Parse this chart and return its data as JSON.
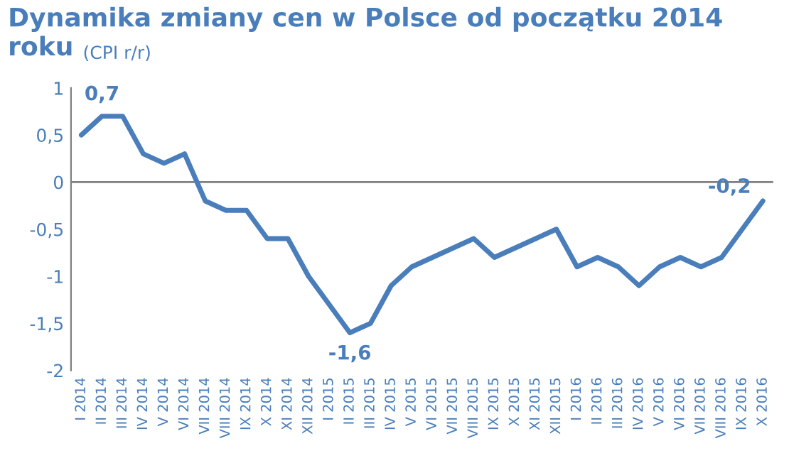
{
  "chart_data": {
    "type": "line",
    "title": "Dynamika zmiany cen w Polsce od początku 2014 roku",
    "subtitle": "(CPI r/r)",
    "categories": [
      "I 2014",
      "II 2014",
      "III 2014",
      "IV 2014",
      "V 2014",
      "VI 2014",
      "VII 2014",
      "VIII 2014",
      "IX 2014",
      "X 2014",
      "XI 2014",
      "XII 2014",
      "I 2015",
      "II 2015",
      "III 2015",
      "IV 2015",
      "V 2015",
      "VI 2015",
      "VII 2015",
      "VIII 2015",
      "IX 2015",
      "X 2015",
      "XI 2015",
      "XII 2015",
      "I 2016",
      "II 2016",
      "III 2016",
      "IV 2016",
      "V 2016",
      "VI 2016",
      "VII 2016",
      "VIII 2016",
      "IX 2016",
      "X 2016"
    ],
    "series": [
      {
        "color": "#4a7ebb",
        "values": [
          0.5,
          0.7,
          0.7,
          0.3,
          0.2,
          0.3,
          -0.2,
          -0.3,
          -0.3,
          -0.6,
          -0.6,
          -1.0,
          -1.3,
          -1.6,
          -1.5,
          -1.1,
          -0.9,
          -0.8,
          -0.7,
          -0.6,
          -0.8,
          -0.7,
          -0.6,
          -0.5,
          -0.9,
          -0.8,
          -0.9,
          -1.1,
          -0.9,
          -0.8,
          -0.9,
          -0.8,
          -0.5,
          -0.2
        ],
        "value_labels": [
          null,
          "0,7",
          null,
          null,
          null,
          null,
          null,
          null,
          null,
          null,
          null,
          null,
          null,
          "-1,6",
          null,
          null,
          null,
          null,
          null,
          null,
          null,
          null,
          null,
          null,
          null,
          null,
          null,
          null,
          null,
          null,
          null,
          null,
          null,
          "-0,2"
        ]
      }
    ],
    "ylim": [
      -2,
      1
    ],
    "yticks": [
      {
        "value": -2,
        "label": "-2"
      },
      {
        "value": -1.5,
        "label": "-1,5"
      },
      {
        "value": -1,
        "label": "-1"
      },
      {
        "value": -0.5,
        "label": "-0,5"
      },
      {
        "value": 0,
        "label": "0"
      },
      {
        "value": 0.5,
        "label": "0,5"
      },
      {
        "value": 1,
        "label": "1"
      }
    ],
    "ref_lines": [
      {
        "axis": "y",
        "value": 0,
        "color": "#808080"
      }
    ],
    "grid": false,
    "legend": false,
    "marker": "none",
    "line_style": "solid"
  }
}
